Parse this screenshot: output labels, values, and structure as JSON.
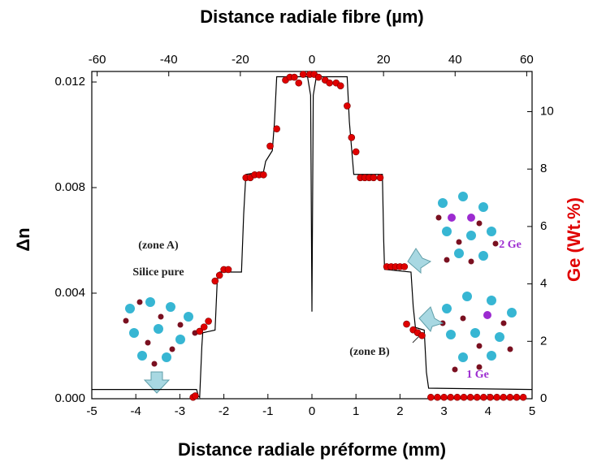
{
  "chart_data": {
    "type": "line",
    "x_label": "Distance radiale préforme (mm)",
    "x2_label": "Distance radiale fibre (µm)",
    "y_label": "Δn",
    "y2_label": "Ge (Wt.%)",
    "xlim": [
      -5,
      5
    ],
    "xticks": [
      -5,
      -4,
      -3,
      -2,
      -1,
      0,
      1,
      2,
      3,
      4,
      5
    ],
    "x2lim": [
      -61.5,
      61.5
    ],
    "x2ticks": [
      -60,
      -40,
      -20,
      0,
      20,
      40,
      60
    ],
    "ylim": [
      0,
      0.0124
    ],
    "yticks": [
      {
        "value": 0,
        "label": "0.000"
      },
      {
        "value": 0.004,
        "label": "0.004"
      },
      {
        "value": 0.008,
        "label": "0.008"
      },
      {
        "value": 0.012,
        "label": "0.012"
      }
    ],
    "y2lim": [
      0,
      11.4
    ],
    "y2ticks": [
      0,
      2,
      4,
      6,
      8,
      10
    ],
    "series": [
      {
        "type": "line",
        "color": "#000000",
        "x": [
          -5,
          -2.62,
          -2.58,
          -2.55,
          -2.5,
          -2.48,
          -2.2,
          -2.15,
          -2.1,
          -1.6,
          -1.55,
          -1.5,
          -1.1,
          -1.05,
          -0.9,
          -0.85,
          -0.8,
          -0.1,
          -0.03,
          0,
          0.03,
          0.1,
          0.8,
          0.85,
          0.9,
          0.95,
          1.6,
          1.63,
          1.65,
          2.25,
          2.3,
          2.35,
          2.55,
          2.6,
          2.65,
          5
        ],
        "values": [
          0.00035,
          0.00035,
          0.0001,
          5e-05,
          0.002,
          0.0025,
          0.0026,
          0.0045,
          0.0048,
          0.0048,
          0.007,
          0.0085,
          0.0086,
          0.009,
          0.0094,
          0.0105,
          0.0122,
          0.0122,
          0.0115,
          0.0033,
          0.0115,
          0.0122,
          0.0122,
          0.0105,
          0.0095,
          0.0085,
          0.0085,
          0.006,
          0.0049,
          0.0048,
          0.0035,
          0.0027,
          0.0026,
          0.001,
          0.0004,
          0.00035
        ]
      },
      {
        "type": "scatter",
        "axis": "y2",
        "color": "#e00000",
        "x": [
          -2.7,
          -2.65,
          -2.55,
          -2.45,
          -2.35,
          -2.2,
          -2.1,
          -2.0,
          -1.9,
          -1.5,
          -1.4,
          -1.3,
          -1.2,
          -1.1,
          -0.95,
          -0.8,
          -0.6,
          -0.5,
          -0.4,
          -0.3,
          -0.2,
          -0.05,
          0.05,
          0.15,
          0.3,
          0.4,
          0.55,
          0.65,
          0.8,
          0.9,
          1.0,
          1.1,
          1.2,
          1.3,
          1.4,
          1.55,
          1.7,
          1.8,
          1.9,
          2.0,
          2.1,
          2.15,
          2.3,
          2.4,
          2.5,
          2.7,
          2.85,
          3.0,
          3.15,
          3.3,
          3.45,
          3.6,
          3.75,
          3.9,
          4.05,
          4.2,
          4.35,
          4.5,
          4.65,
          4.8
        ],
        "values": [
          0.05,
          0.1,
          2.35,
          2.5,
          2.7,
          4.1,
          4.3,
          4.5,
          4.5,
          7.7,
          7.7,
          7.8,
          7.8,
          7.8,
          8.8,
          9.4,
          11.1,
          11.2,
          11.2,
          11.0,
          11.3,
          11.3,
          11.3,
          11.2,
          11.1,
          11.0,
          11.0,
          10.9,
          10.2,
          9.1,
          8.6,
          7.7,
          7.7,
          7.7,
          7.7,
          7.7,
          4.6,
          4.6,
          4.6,
          4.6,
          4.6,
          2.6,
          2.4,
          2.3,
          2.2,
          0.05,
          0.05,
          0.05,
          0.05,
          0.05,
          0.05,
          0.05,
          0.05,
          0.05,
          0.05,
          0.05,
          0.05,
          0.05,
          0.05,
          0.05
        ]
      }
    ],
    "annotations": [
      "(zone A)",
      "Silice pure",
      "(zone B)",
      "2 Ge",
      "1 Ge"
    ]
  }
}
